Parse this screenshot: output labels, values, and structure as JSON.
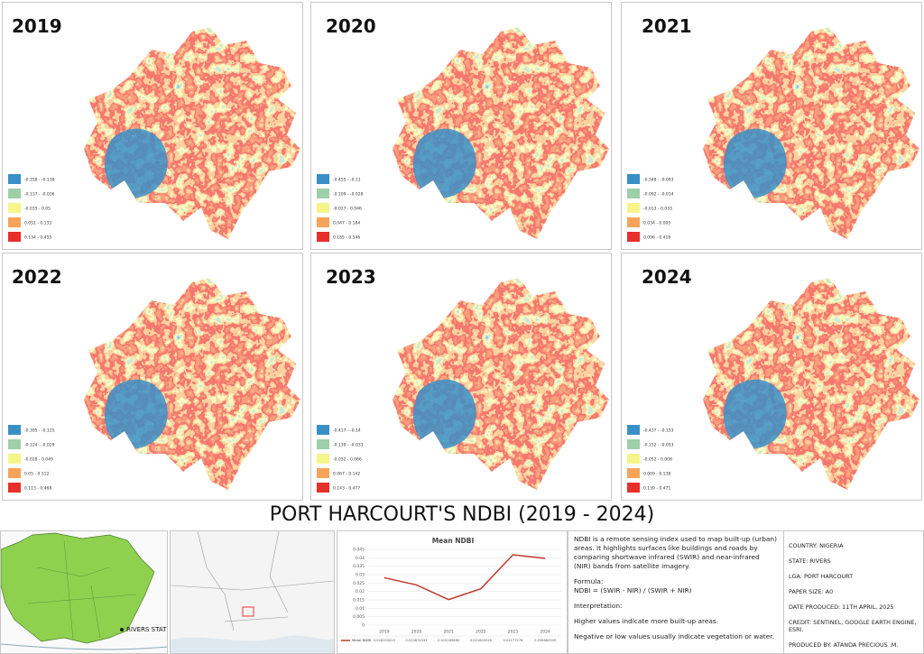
{
  "panels": [
    {
      "year": "2019",
      "legend": [
        "-0.358 - -0.138",
        "-0.137 - -0.036",
        "-0.035 - 0.05",
        "0.051 - 0.133",
        "0.134 - 0.455"
      ]
    },
    {
      "year": "2020",
      "legend": [
        "-0.455 - -0.11",
        "-0.109 - -0.028",
        "-0.027 - 0.046",
        "0.047 - 0.184",
        "0.185 - 0.546"
      ]
    },
    {
      "year": "2021",
      "legend": [
        "-0.348 - -0.093",
        "-0.092 - -0.014",
        "-0.013 - 0.033",
        "0.034 - 0.095",
        "0.096 - 0.418"
      ]
    },
    {
      "year": "2022",
      "legend": [
        "-0.395 - -0.125",
        "-0.124 - -0.029",
        "-0.028 - 0.049",
        "0.05 - 0.112",
        "0.113 - 0.468"
      ]
    },
    {
      "year": "2023",
      "legend": [
        "-0.417 - -0.14",
        "-0.139 - -0.033",
        "-0.032 - 0.066",
        "0.067 - 0.142",
        "0.143 - 0.477"
      ]
    },
    {
      "year": "2024",
      "legend": [
        "-0.437 - -0.153",
        "-0.152 - -0.053",
        "-0.052 - 0.008",
        "0.009 - 0.138",
        "0.139 - 0.471"
      ]
    }
  ],
  "title": "PORT HARCOURT'S NDBI (2019 - 2024)",
  "locator": {
    "label": "RIVERS STATE"
  },
  "chart_data": {
    "type": "line",
    "title": "Mean NDBI",
    "categories": [
      "2019",
      "2020",
      "2021",
      "2022",
      "2023",
      "2024"
    ],
    "series": [
      {
        "name": "Mean NDBI",
        "color": "#c0392b",
        "values": [
          0.028150023,
          0.023874337,
          0.015165685,
          0.021604526,
          0.04177276,
          0.039662909
        ]
      }
    ],
    "ylim": [
      0,
      0.045
    ],
    "yticks": [
      0,
      0.005,
      0.01,
      0.015,
      0.02,
      0.025,
      0.03,
      0.035,
      0.04,
      0.045
    ],
    "grid": true
  },
  "description": {
    "paragraphs": [
      "NDBI is a remote sensing index used to map built-up (urban) areas. It highlights surfaces like buildings and roads by comparing shortwave infrared (SWIR) and near-infrared (NIR) bands from satellite imagery.",
      "Formula:\nNDBI = (SWIR - NIR) / (SWIR + NIR)",
      "Interpretation:",
      "Higher values indicate more built-up areas.",
      "Negative or low values usually indicate vegetation or water."
    ]
  },
  "info": [
    "COUNTRY: NIGERIA",
    "STATE: RIVERS",
    "LGA: PORT HARCOURT",
    "PAPER SIZE: A0",
    "DATE PRODUCED: 11TH APRIL, 2025",
    "CREDIT: SENTINEL, GOOGLE EARTH ENGINE, ESRI.",
    "PRODUCED BY: ATANDA PRECIOUS .M."
  ]
}
